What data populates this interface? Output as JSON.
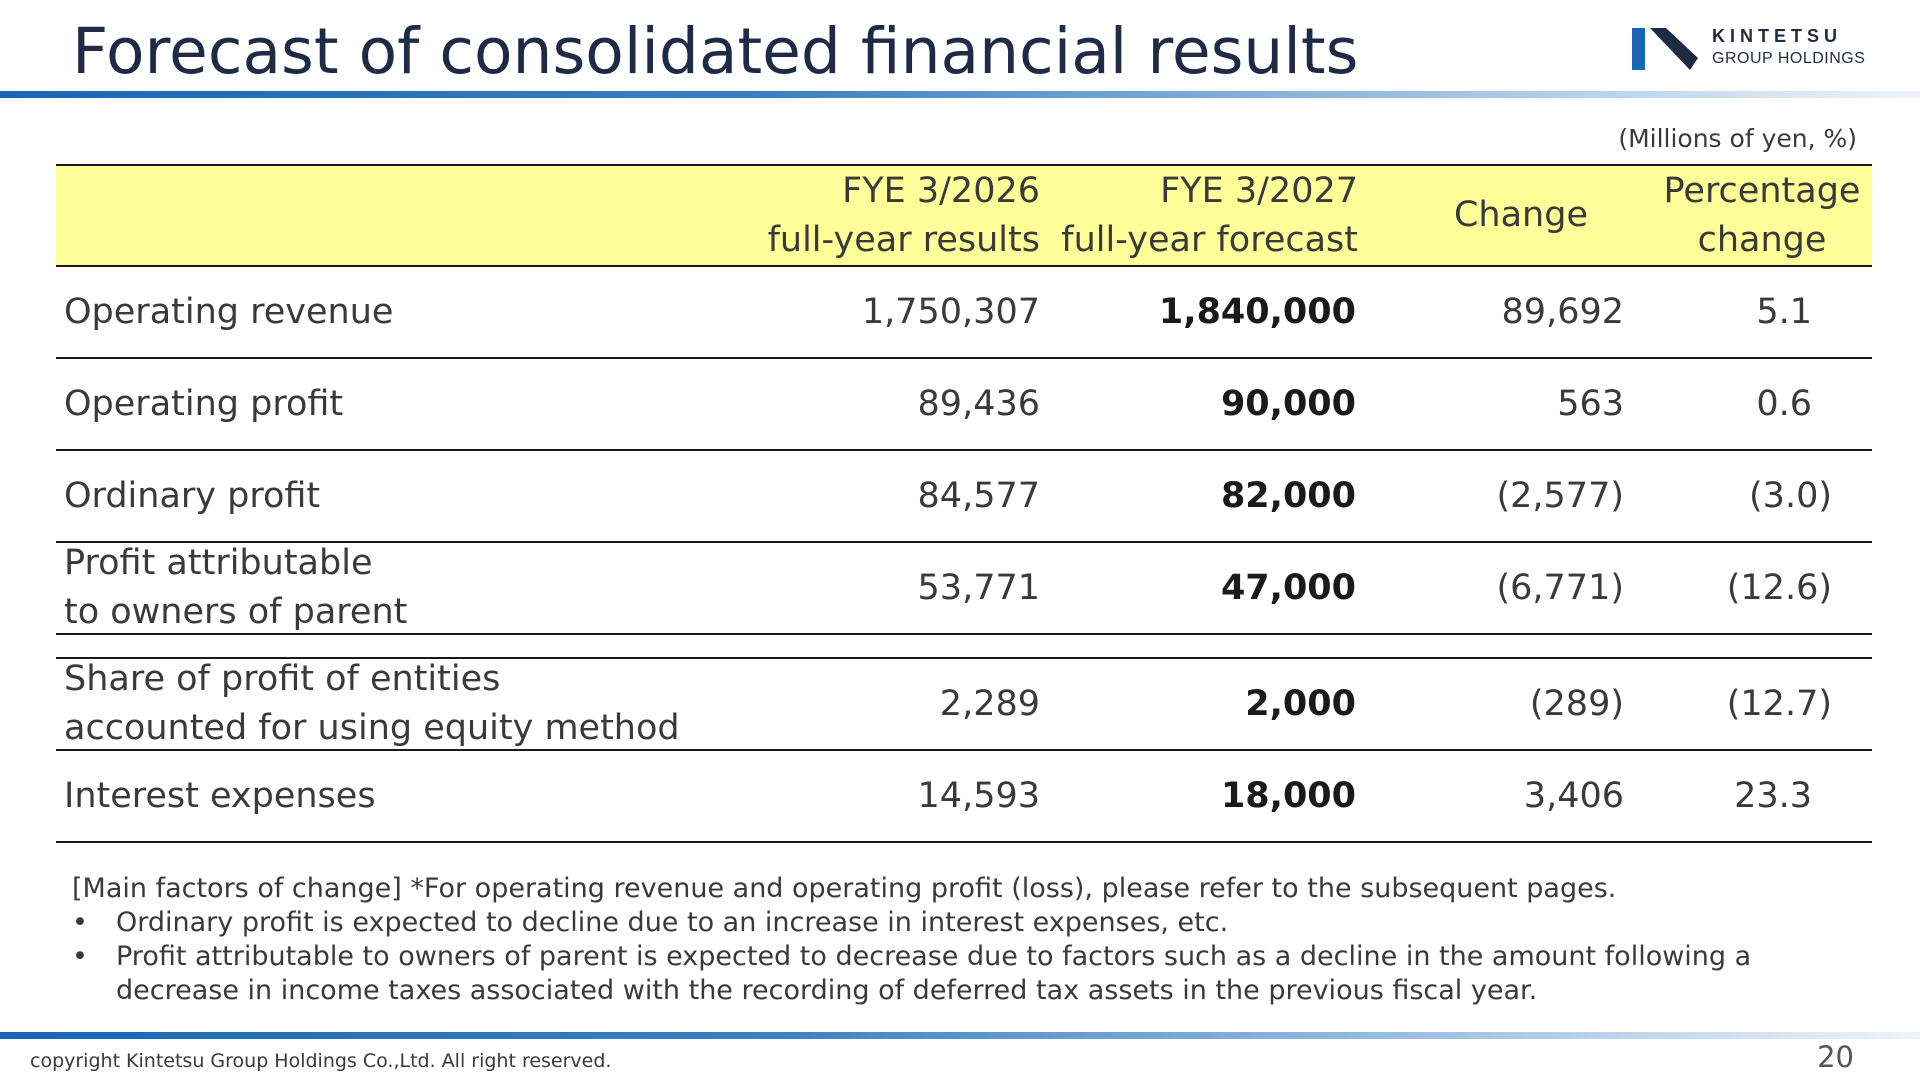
{
  "title": "Forecast of consolidated financial results",
  "logo": {
    "name": "KINTETSU",
    "subtitle": "GROUP HOLDINGS",
    "brand_color": "#1866b4"
  },
  "unit_note": "(Millions of yen, %)",
  "table": {
    "header_color": "#ffff99",
    "columns": {
      "fy2026_line1": "FYE 3/2026",
      "fy2026_line2": "full-year results",
      "fy2027_line1": "FYE 3/2027",
      "fy2027_line2": "full-year forecast",
      "change": "Change",
      "pct_line1": "Percentage",
      "pct_line2": "change"
    },
    "rows": [
      {
        "label": "Operating revenue",
        "fy2026": "1,750,307",
        "fy2027": "1,840,000",
        "change": "89,692",
        "pct": "5.1"
      },
      {
        "label": "Operating profit",
        "fy2026": "89,436",
        "fy2027": "90,000",
        "change": "563",
        "pct": "0.6"
      },
      {
        "label": "Ordinary profit",
        "fy2026": "84,577",
        "fy2027": "82,000",
        "change": "(2,577)",
        "pct": "(3.0)"
      },
      {
        "label_line1": "Profit attributable",
        "label_line2": "to owners of parent",
        "fy2026": "53,771",
        "fy2027": "47,000",
        "change": "(6,771)",
        "pct": "(12.6)"
      },
      {
        "label_line1": "Share of profit of entities",
        "label_line2": "accounted for using equity method",
        "fy2026": "2,289",
        "fy2027": "2,000",
        "change": "(289)",
        "pct": "(12.7)"
      },
      {
        "label": "Interest expenses",
        "fy2026": "14,593",
        "fy2027": "18,000",
        "change": "3,406",
        "pct": "23.3"
      }
    ]
  },
  "notes": {
    "heading": "[Main factors of change] *For operating revenue and operating profit (loss), please refer to the subsequent pages.",
    "bullet_symbol": "•",
    "bullets": [
      "Ordinary profit is expected to decline due to an increase in interest expenses, etc.",
      "Profit attributable to owners of parent is expected to decrease due to factors such as a decline in the amount following a decrease in income taxes associated with the recording of deferred tax assets in the previous fiscal year."
    ]
  },
  "footer": {
    "copyright": "copyright Kintetsu Group Holdings Co.,Ltd. All right reserved.",
    "page_number": "20"
  }
}
